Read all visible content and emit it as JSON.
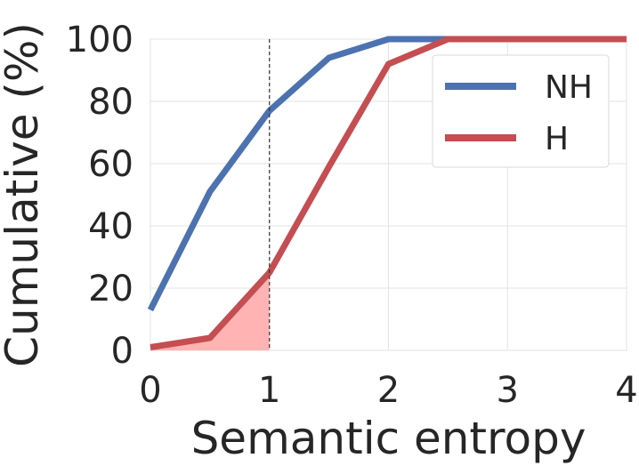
{
  "chart_data": {
    "type": "line",
    "xlabel": "Semantic entropy",
    "ylabel": "Cumulative (%)",
    "xlim": [
      0,
      4
    ],
    "ylim": [
      0,
      100
    ],
    "xticks": [
      "0",
      "1",
      "2",
      "3",
      "4"
    ],
    "yticks": [
      "0",
      "20",
      "40",
      "60",
      "80",
      "100"
    ],
    "grid": true,
    "legend_position": "top-right",
    "threshold_x": 1,
    "series": [
      {
        "name": "NH",
        "color": "#4c72b0",
        "x": [
          0,
          0.5,
          1,
          1.5,
          2,
          2.5,
          3,
          3.5,
          4
        ],
        "y": [
          13,
          51,
          77,
          94,
          100,
          100,
          100,
          100,
          100
        ]
      },
      {
        "name": "H",
        "color": "#c44e52",
        "x": [
          0,
          0.5,
          1,
          1.5,
          2,
          2.5,
          3,
          3.5,
          4
        ],
        "y": [
          1,
          4,
          25,
          59,
          92,
          100,
          100,
          100,
          100
        ]
      }
    ],
    "shaded_area": {
      "series": "H",
      "x_max": 1,
      "color": "#ffb3b3"
    }
  }
}
